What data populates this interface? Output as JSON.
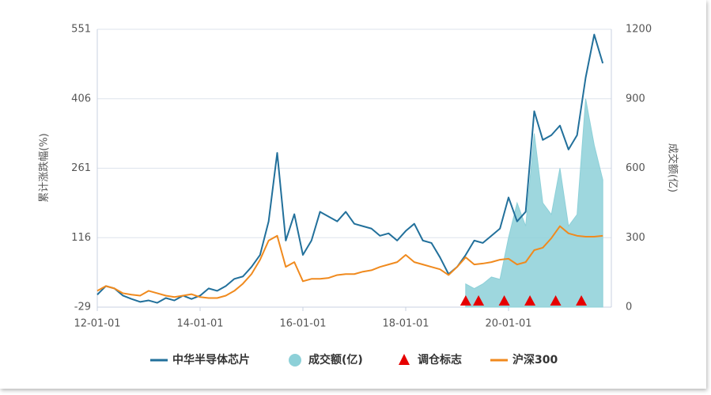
{
  "chart_data": {
    "type": "line",
    "y_label": "累计涨跌幅(%)",
    "y2_label": "成交额(亿)",
    "x": [
      "12-01-01",
      "12-03-01",
      "12-05-01",
      "12-07-01",
      "12-09-01",
      "12-11-01",
      "13-01-01",
      "13-03-01",
      "13-05-01",
      "13-07-01",
      "13-09-01",
      "13-11-01",
      "14-01-01",
      "14-03-01",
      "14-05-01",
      "14-07-01",
      "14-09-01",
      "14-11-01",
      "15-01-01",
      "15-03-01",
      "15-05-01",
      "15-07-01",
      "15-09-01",
      "15-11-01",
      "16-01-01",
      "16-03-01",
      "16-05-01",
      "16-07-01",
      "16-09-01",
      "16-11-01",
      "17-01-01",
      "17-03-01",
      "17-05-01",
      "17-07-01",
      "17-09-01",
      "17-11-01",
      "18-01-01",
      "18-03-01",
      "18-05-01",
      "18-07-01",
      "18-09-01",
      "18-11-01",
      "19-01-01",
      "19-03-01",
      "19-05-01",
      "19-07-01",
      "19-09-01",
      "19-11-01",
      "20-01-01",
      "20-03-01",
      "20-05-01",
      "20-07-01",
      "20-09-01",
      "20-11-01",
      "21-01-01",
      "21-03-01",
      "21-05-01",
      "21-07-01",
      "21-09-01",
      "21-11-01"
    ],
    "xlim": [
      "12-01-01",
      "22-01-01"
    ],
    "xticks": [
      "12-01-01",
      "14-01-01",
      "16-01-01",
      "18-01-01",
      "20-01-01"
    ],
    "ylim": [
      -29,
      551
    ],
    "yticks": [
      -29,
      116,
      261,
      406,
      551
    ],
    "y2lim": [
      0,
      1200
    ],
    "y2ticks": [
      0,
      300,
      600,
      900,
      1200
    ],
    "grid": true,
    "legend": "bottom",
    "series": [
      {
        "name": "中华半导体芯片",
        "type": "line",
        "color": "#22709b",
        "values": [
          -3,
          15,
          10,
          -5,
          -12,
          -18,
          -15,
          -20,
          -10,
          -15,
          -5,
          -12,
          -5,
          10,
          5,
          15,
          30,
          35,
          55,
          80,
          150,
          293,
          110,
          165,
          80,
          110,
          170,
          160,
          150,
          170,
          145,
          140,
          135,
          120,
          125,
          110,
          130,
          145,
          110,
          105,
          75,
          40,
          55,
          80,
          110,
          105,
          120,
          135,
          200,
          150,
          170,
          380,
          320,
          330,
          350,
          300,
          330,
          450,
          540,
          480
        ]
      },
      {
        "name": "成交额(亿)",
        "type": "area",
        "axis": "y2",
        "color": "#8dd0d8",
        "values": [
          null,
          null,
          null,
          null,
          null,
          null,
          null,
          null,
          null,
          null,
          null,
          null,
          null,
          null,
          null,
          null,
          null,
          null,
          null,
          null,
          null,
          null,
          null,
          null,
          null,
          null,
          null,
          null,
          null,
          null,
          null,
          null,
          null,
          null,
          null,
          null,
          null,
          null,
          null,
          null,
          null,
          null,
          null,
          100,
          80,
          100,
          130,
          120,
          300,
          450,
          350,
          750,
          450,
          400,
          600,
          350,
          400,
          900,
          700,
          550
        ]
      },
      {
        "name": "调仓标志",
        "type": "marker",
        "color": "#e60000",
        "x": [
          "19-03-01",
          "19-06-01",
          "19-12-01",
          "20-06-01",
          "20-12-01",
          "21-06-01"
        ]
      },
      {
        "name": "沪深300",
        "type": "line",
        "color": "#f08a1e",
        "values": [
          5,
          15,
          10,
          0,
          -3,
          -5,
          5,
          0,
          -5,
          -8,
          -5,
          -2,
          -8,
          -10,
          -10,
          -5,
          5,
          20,
          40,
          70,
          110,
          120,
          55,
          65,
          25,
          30,
          30,
          32,
          38,
          40,
          40,
          45,
          48,
          55,
          60,
          65,
          80,
          65,
          60,
          55,
          50,
          38,
          55,
          75,
          60,
          62,
          65,
          70,
          72,
          60,
          65,
          90,
          95,
          115,
          140,
          125,
          120,
          118,
          118,
          120
        ]
      }
    ]
  }
}
